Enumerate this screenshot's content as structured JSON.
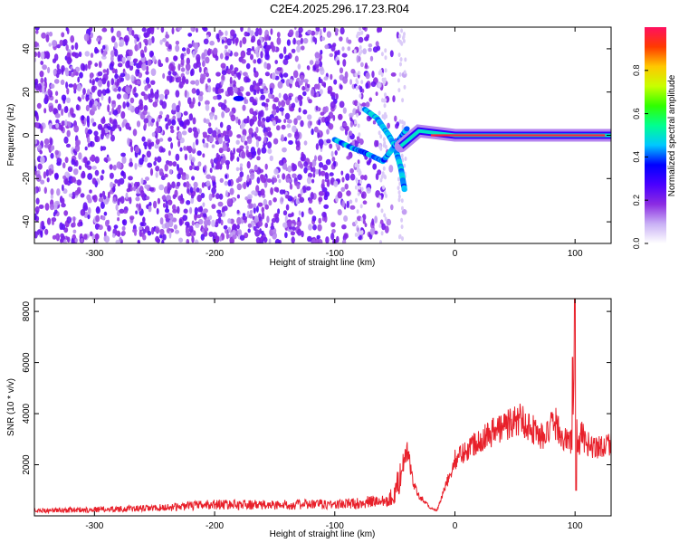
{
  "title": "C2E4.2025.296.17.23.R04",
  "chart_data": [
    {
      "type": "heatmap",
      "name": "spectrogram",
      "xlabel": "Height of straight line (km)",
      "ylabel": "Frequency (Hz)",
      "xlim": [
        -350,
        130
      ],
      "ylim": [
        -50,
        50
      ],
      "xticks": [
        -300,
        -200,
        -100,
        0,
        100
      ],
      "yticks": [
        -40,
        -20,
        0,
        20,
        40
      ],
      "colorbar": {
        "label": "Normalized spectral amplitude",
        "range": [
          0,
          1
        ],
        "ticks": [
          "0.0",
          "0.2",
          "0.4",
          "0.6",
          "0.8"
        ],
        "colors": [
          "#ffffff",
          "#c9b0f5",
          "#8b2be2",
          "#4a00ff",
          "#0000ff",
          "#00c8ff",
          "#00ff90",
          "#30ff00",
          "#c8ff00",
          "#ffc800",
          "#ff3a00",
          "#ff1060"
        ]
      },
      "features": {
        "noise_floor_region_x": [
          -350,
          -45
        ],
        "carrier": [
          {
            "x": -45,
            "y": -5
          },
          {
            "x": -30,
            "y": 2
          },
          {
            "x": 0,
            "y": 0
          },
          {
            "x": 100,
            "y": 0
          },
          {
            "x": 130,
            "y": 0
          }
        ],
        "branch_upper": [
          {
            "x": -75,
            "y": 12
          },
          {
            "x": -65,
            "y": 8
          },
          {
            "x": -55,
            "y": 0
          },
          {
            "x": -50,
            "y": -5
          },
          {
            "x": -45,
            "y": -15
          },
          {
            "x": -42,
            "y": -25
          }
        ],
        "branch_lower": [
          {
            "x": -100,
            "y": -2
          },
          {
            "x": -85,
            "y": -6
          },
          {
            "x": -75,
            "y": -8
          },
          {
            "x": -60,
            "y": -12
          },
          {
            "x": -50,
            "y": -5
          },
          {
            "x": -40,
            "y": 3
          }
        ],
        "isolated_blob": {
          "x": -180,
          "y": 17
        }
      }
    },
    {
      "type": "line",
      "name": "snr",
      "xlabel": "Height of straight line (km)",
      "ylabel": "SNR (10 * v/v)",
      "xlim": [
        -350,
        130
      ],
      "ylim": [
        0,
        8500
      ],
      "xticks": [
        -300,
        -200,
        -100,
        0,
        100
      ],
      "yticks": [
        2000,
        4000,
        6000,
        8000
      ],
      "color": "#e8202a",
      "series": [
        {
          "x": [
            -350,
            -300,
            -250,
            -200,
            -150,
            -120,
            -100,
            -80,
            -60,
            -50,
            -45,
            -40,
            -38,
            -36,
            -30,
            -20,
            -15,
            -5,
            0,
            20,
            40,
            55,
            65,
            75,
            80,
            85,
            90,
            95,
            98,
            100,
            102,
            105,
            110,
            120,
            130
          ],
          "y": [
            200,
            250,
            300,
            450,
            420,
            450,
            450,
            500,
            600,
            800,
            1800,
            2500,
            2300,
            1500,
            800,
            300,
            200,
            1500,
            2200,
            3000,
            3500,
            3800,
            3400,
            3000,
            3500,
            3600,
            3000,
            2900,
            3000,
            7500,
            2500,
            3200,
            2800,
            2700,
            2900
          ]
        }
      ]
    }
  ]
}
